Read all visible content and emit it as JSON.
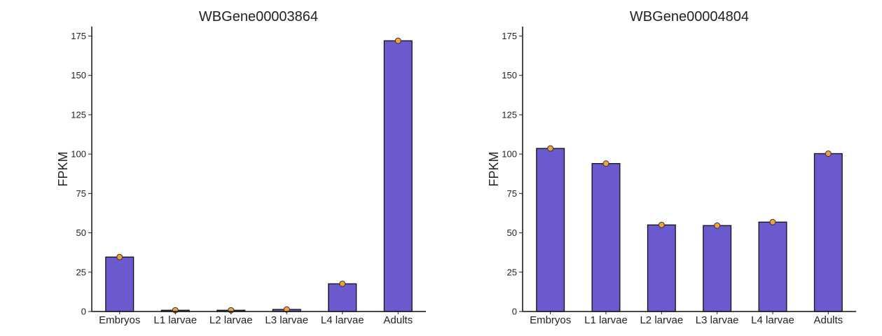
{
  "chart_data": [
    {
      "type": "bar",
      "title": "WBGene00003864",
      "xlabel": "",
      "ylabel": "FPKM",
      "ylim": [
        0,
        181
      ],
      "yticks": [
        0,
        25,
        50,
        75,
        100,
        125,
        150,
        175
      ],
      "categories": [
        "Embryos",
        "L1 larvae",
        "L2 larvae",
        "L3 larvae",
        "L4 larvae",
        "Adults"
      ],
      "values": [
        34.6,
        0.8,
        0.8,
        1.3,
        17.6,
        172.0
      ],
      "points": [
        34.6,
        0.8,
        0.8,
        1.3,
        17.6,
        172.0
      ],
      "grid": false,
      "bar_color": "#6a5acd",
      "point_color": "#f0a040"
    },
    {
      "type": "bar",
      "title": "WBGene00004804",
      "xlabel": "",
      "ylabel": "FPKM",
      "ylim": [
        0,
        181
      ],
      "yticks": [
        0,
        25,
        50,
        75,
        100,
        125,
        150,
        175
      ],
      "categories": [
        "Embryos",
        "L1 larvae",
        "L2 larvae",
        "L3 larvae",
        "L4 larvae",
        "Adults"
      ],
      "values": [
        103.6,
        94.0,
        55.0,
        54.6,
        56.8,
        100.3
      ],
      "points": [
        103.6,
        94.0,
        55.0,
        54.6,
        56.8,
        100.3
      ],
      "grid": false,
      "bar_color": "#6a5acd",
      "point_color": "#f0a040"
    }
  ]
}
